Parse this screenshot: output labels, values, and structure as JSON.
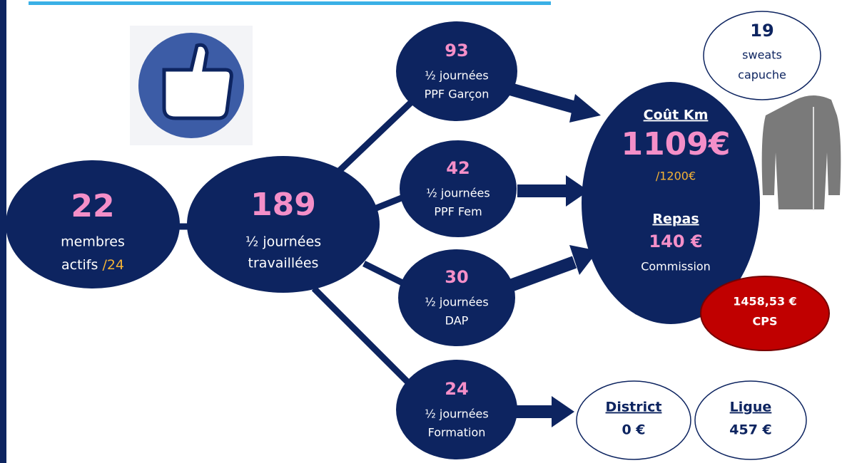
{
  "members": {
    "value": 22,
    "label_1": "membres",
    "label_2": "actifs",
    "total": "/24"
  },
  "worked": {
    "value": 189,
    "label_1": "½ journées",
    "label_2": "travaillées"
  },
  "activities": [
    {
      "value": 93,
      "label_1": "½ journées",
      "label_2": "PPF Garçon"
    },
    {
      "value": 42,
      "label_1": "½ journées",
      "label_2": "PPF Fem"
    },
    {
      "value": 30,
      "label_1": "½ journées",
      "label_2": "DAP"
    },
    {
      "value": 24,
      "label_1": "½ journées",
      "label_2": "Formation"
    }
  ],
  "costs": {
    "km_title": "Coût Km",
    "km_value": "1109€",
    "km_budget": "/1200€",
    "meal_title": "Repas",
    "meal_value": "140 €",
    "meal_note": "Commission"
  },
  "sweats": {
    "value": 19,
    "label_1": "sweats",
    "label_2": "capuche"
  },
  "cps": {
    "value": "1458,53 €",
    "label": "CPS"
  },
  "district": {
    "title": "District",
    "value": "0 €"
  },
  "ligue": {
    "title": "Ligue",
    "value": "457 €"
  }
}
